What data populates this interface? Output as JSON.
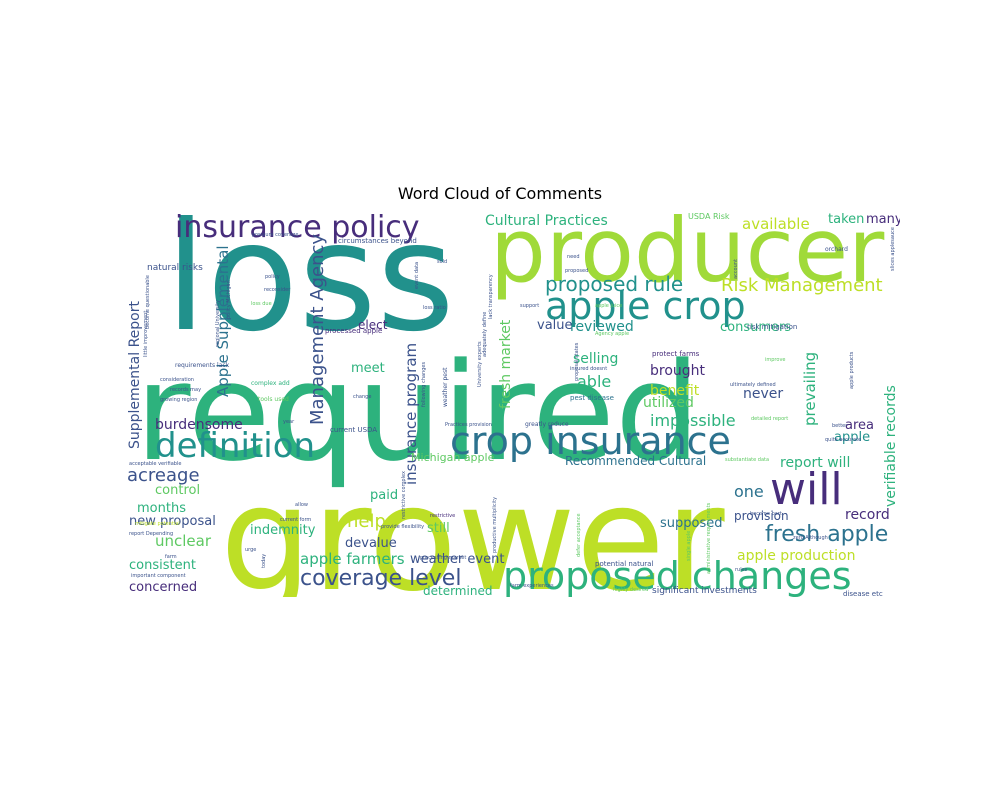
{
  "title": "Word Cloud of Comments",
  "palette": {
    "yellow_green": "#bddf26",
    "lime": "#a0da39",
    "green": "#2db27d",
    "teal": "#21918c",
    "light_green": "#5ec962",
    "blue_teal": "#2c728e",
    "steel": "#3b528b",
    "indigo": "#472d7b",
    "purple": "#440154",
    "yellow": "#e8e419"
  },
  "words": [
    {
      "text": "loss",
      "color": "#21918c",
      "size": 1.0
    },
    {
      "text": "required",
      "color": "#2db27d",
      "size": 0.98
    },
    {
      "text": "grower",
      "color": "#bddf26",
      "size": 0.96
    },
    {
      "text": "producer",
      "color": "#a0da39",
      "size": 0.62
    },
    {
      "text": "insurance policy",
      "color": "#472d7b",
      "size": 0.24
    },
    {
      "text": "apple crop",
      "color": "#21918c",
      "size": 0.26
    },
    {
      "text": "crop insurance",
      "color": "#2c728e",
      "size": 0.26
    },
    {
      "text": "definition",
      "color": "#21918c",
      "size": 0.24
    },
    {
      "text": "proposed changes",
      "color": "#2db27d",
      "size": 0.26
    },
    {
      "text": "will",
      "color": "#472d7b",
      "size": 0.3
    },
    {
      "text": "Cultural Practices",
      "color": "#2db27d",
      "size": 0.1
    },
    {
      "text": "proposed rule",
      "color": "#21918c",
      "size": 0.14
    },
    {
      "text": "Risk Management",
      "color": "#bddf26",
      "size": 0.12
    },
    {
      "text": "Supplemental Report",
      "color": "#3b528b",
      "size": 0.1
    },
    {
      "text": "Management Agency",
      "color": "#3b528b",
      "size": 0.12
    },
    {
      "text": "Apple Supplemental",
      "color": "#2c728e",
      "size": 0.11
    },
    {
      "text": "insurance program",
      "color": "#3b528b",
      "size": 0.1
    },
    {
      "text": "fresh market",
      "color": "#5ec962",
      "size": 0.1
    },
    {
      "text": "verifiable records",
      "color": "#2db27d",
      "size": 0.09
    },
    {
      "text": "fresh apple",
      "color": "#2c728e",
      "size": 0.14
    },
    {
      "text": "coverage level",
      "color": "#3b528b",
      "size": 0.14
    },
    {
      "text": "apple farmers",
      "color": "#2db27d",
      "size": 0.1
    },
    {
      "text": "acreage",
      "color": "#3b528b",
      "size": 0.12
    },
    {
      "text": "help",
      "color": "#bddf26",
      "size": 0.12
    },
    {
      "text": "apple production",
      "color": "#bddf26",
      "size": 0.1
    },
    {
      "text": "prevailing",
      "color": "#2db27d",
      "size": 0.1
    },
    {
      "text": "available",
      "color": "#bddf26",
      "size": 0.1
    },
    {
      "text": "consumers",
      "color": "#2db27d",
      "size": 0.08
    },
    {
      "text": "reviewed",
      "color": "#21918c",
      "size": 0.09
    },
    {
      "text": "selling",
      "color": "#2db27d",
      "size": 0.09
    },
    {
      "text": "value",
      "color": "#3b528b",
      "size": 0.09
    },
    {
      "text": "able",
      "color": "#2db27d",
      "size": 0.11
    },
    {
      "text": "benefit",
      "color": "#bddf26",
      "size": 0.09
    },
    {
      "text": "brought",
      "color": "#472d7b",
      "size": 0.09
    },
    {
      "text": "utilized",
      "color": "#5ec962",
      "size": 0.09
    },
    {
      "text": "never",
      "color": "#3b528b",
      "size": 0.09
    },
    {
      "text": "impossible",
      "color": "#2db27d",
      "size": 0.1
    },
    {
      "text": "burdensome",
      "color": "#472d7b",
      "size": 0.09
    },
    {
      "text": "meet",
      "color": "#2db27d",
      "size": 0.09
    },
    {
      "text": "elect",
      "color": "#472d7b",
      "size": 0.08
    },
    {
      "text": "Recommended Cultural",
      "color": "#2c728e",
      "size": 0.08
    },
    {
      "text": "Michigan apple",
      "color": "#5ec962",
      "size": 0.07
    },
    {
      "text": "report will",
      "color": "#2db27d",
      "size": 0.08
    },
    {
      "text": "apple",
      "color": "#21918c",
      "size": 0.08
    },
    {
      "text": "area",
      "color": "#472d7b",
      "size": 0.08
    },
    {
      "text": "one",
      "color": "#2c728e",
      "size": 0.1
    },
    {
      "text": "provision",
      "color": "#3b528b",
      "size": 0.08
    },
    {
      "text": "record",
      "color": "#472d7b",
      "size": 0.09
    },
    {
      "text": "control",
      "color": "#5ec962",
      "size": 0.08
    },
    {
      "text": "months",
      "color": "#2db27d",
      "size": 0.08
    },
    {
      "text": "new proposal",
      "color": "#3b528b",
      "size": 0.08
    },
    {
      "text": "unclear",
      "color": "#5ec962",
      "size": 0.09
    },
    {
      "text": "indemnity",
      "color": "#2db27d",
      "size": 0.08
    },
    {
      "text": "consistent",
      "color": "#2db27d",
      "size": 0.08
    },
    {
      "text": "concerned",
      "color": "#472d7b",
      "size": 0.08
    },
    {
      "text": "paid",
      "color": "#2db27d",
      "size": 0.09
    },
    {
      "text": "still",
      "color": "#5ec962",
      "size": 0.09
    },
    {
      "text": "devalue",
      "color": "#3b528b",
      "size": 0.08
    },
    {
      "text": "supposed",
      "color": "#2c728e",
      "size": 0.08
    },
    {
      "text": "weather event",
      "color": "#3b528b",
      "size": 0.08
    },
    {
      "text": "determined",
      "color": "#2db27d",
      "size": 0.08
    },
    {
      "text": "many steps",
      "color": "#bddf26",
      "size": 0.05
    },
    {
      "text": "significant investments",
      "color": "#3b528b",
      "size": 0.05
    },
    {
      "text": "natural risks",
      "color": "#3b528b",
      "size": 0.05
    },
    {
      "text": "processed apple",
      "color": "#472d7b",
      "size": 0.04
    },
    {
      "text": "current USDA",
      "color": "#3b528b",
      "size": 0.05
    },
    {
      "text": "risk mitigation",
      "color": "#3b528b",
      "size": 0.04
    },
    {
      "text": "protect farms",
      "color": "#472d7b",
      "size": 0.04
    },
    {
      "text": "pest disease",
      "color": "#2c728e",
      "size": 0.04
    },
    {
      "text": "USDA Risk",
      "color": "#5ec962",
      "size": 0.05
    },
    {
      "text": "taken",
      "color": "#2db27d",
      "size": 0.07
    },
    {
      "text": "many",
      "color": "#472d7b",
      "size": 0.07
    },
    {
      "text": "orchard",
      "color": "#3b528b",
      "size": 0.04
    },
    {
      "text": "greatly reduce",
      "color": "#3b528b",
      "size": 0.04
    },
    {
      "text": "weather pest",
      "color": "#3b528b",
      "size": 0.04
    },
    {
      "text": "tools used",
      "color": "#5ec962",
      "size": 0.04
    },
    {
      "text": "complex add",
      "color": "#2db27d",
      "size": 0.04
    },
    {
      "text": "potential natural",
      "color": "#3b528b",
      "size": 0.04
    },
    {
      "text": "disease etc",
      "color": "#3b528b",
      "size": 0.04
    },
    {
      "text": "restrictive",
      "color": "#472d7b",
      "size": 0.03
    },
    {
      "text": "requirements lack",
      "color": "#3b528b",
      "size": 0.04
    },
    {
      "text": "little improvement",
      "color": "#3b528b",
      "size": 0.03
    },
    {
      "text": "become questionable",
      "color": "#3b528b",
      "size": 0.03
    },
    {
      "text": "circumstances beyond",
      "color": "#3b528b",
      "size": 0.04
    },
    {
      "text": "loss ratio",
      "color": "#3b528b",
      "size": 0.03
    },
    {
      "text": "support",
      "color": "#3b528b",
      "size": 0.03
    },
    {
      "text": "apple juice",
      "color": "#5ec962",
      "size": 0.03
    },
    {
      "text": "Agency apple",
      "color": "#5ec962",
      "size": 0.03
    },
    {
      "text": "insured doesnt",
      "color": "#3b528b",
      "size": 0.03
    },
    {
      "text": "ultimately defined",
      "color": "#3b528b",
      "size": 0.03
    },
    {
      "text": "detailed report",
      "color": "#5ec962",
      "size": 0.03
    },
    {
      "text": "better",
      "color": "#3b528b",
      "size": 0.03
    },
    {
      "text": "quite accurate",
      "color": "#3b528b",
      "size": 0.03
    },
    {
      "text": "report Depending",
      "color": "#3b528b",
      "size": 0.03
    },
    {
      "text": "mitigate potential",
      "color": "#bddf26",
      "size": 0.03
    },
    {
      "text": "important component",
      "color": "#3b528b",
      "size": 0.03
    },
    {
      "text": "current form",
      "color": "#3b528b",
      "size": 0.03
    },
    {
      "text": "processing market",
      "color": "#3b528b",
      "size": 0.03
    },
    {
      "text": "farm experiences",
      "color": "#3b528b",
      "size": 0.03
    },
    {
      "text": "highly desired",
      "color": "#5ec962",
      "size": 0.03
    },
    {
      "text": "zero Although",
      "color": "#3b528b",
      "size": 0.03
    },
    {
      "text": "pressure coverage",
      "color": "#3b528b",
      "size": 0.03
    },
    {
      "text": "consideration",
      "color": "#3b528b",
      "size": 0.03
    },
    {
      "text": "records may",
      "color": "#3b528b",
      "size": 0.03
    },
    {
      "text": "growing region",
      "color": "#3b528b",
      "size": 0.03
    },
    {
      "text": "policy",
      "color": "#3b528b",
      "size": 0.03
    },
    {
      "text": "reconsider",
      "color": "#3b528b",
      "size": 0.03
    },
    {
      "text": "loss due",
      "color": "#5ec962",
      "size": 0.03
    },
    {
      "text": "change",
      "color": "#3b528b",
      "size": 0.03
    },
    {
      "text": "year",
      "color": "#3b528b",
      "size": 0.03
    },
    {
      "text": "allow",
      "color": "#3b528b",
      "size": 0.03
    },
    {
      "text": "urge",
      "color": "#3b528b",
      "size": 0.03
    },
    {
      "text": "today",
      "color": "#3b528b",
      "size": 0.03
    },
    {
      "text": "sold",
      "color": "#3b528b",
      "size": 0.03
    },
    {
      "text": "need",
      "color": "#3b528b",
      "size": 0.03
    },
    {
      "text": "proposed",
      "color": "#3b528b",
      "size": 0.03
    },
    {
      "text": "account",
      "color": "#3b528b",
      "size": 0.03
    },
    {
      "text": "acceptable verifiable",
      "color": "#3b528b",
      "size": 0.03
    },
    {
      "text": "substantiate data",
      "color": "#5ec962",
      "size": 0.03
    },
    {
      "text": "provide flexibility",
      "color": "#3b528b",
      "size": 0.03
    },
    {
      "text": "single apple",
      "color": "#5ec962",
      "size": 0.03
    },
    {
      "text": "become part",
      "color": "#3b528b",
      "size": 0.03
    },
    {
      "text": "apple products",
      "color": "#3b528b",
      "size": 0.03
    },
    {
      "text": "lack transparency",
      "color": "#3b528b",
      "size": 0.03
    },
    {
      "text": "administrative requirements",
      "color": "#5ec962",
      "size": 0.03
    },
    {
      "text": "following changes",
      "color": "#3b528b",
      "size": 0.03
    },
    {
      "text": "University experts",
      "color": "#3b528b",
      "size": 0.03
    },
    {
      "text": "adequately define",
      "color": "#3b528b",
      "size": 0.03
    },
    {
      "text": "proposal states",
      "color": "#3b528b",
      "size": 0.03
    },
    {
      "text": "restrictive complex",
      "color": "#3b528b",
      "size": 0.03
    },
    {
      "text": "event data",
      "color": "#3b528b",
      "size": 0.03
    },
    {
      "text": "regional University",
      "color": "#3b528b",
      "size": 0.03
    },
    {
      "text": "policy Michigan",
      "color": "#3b528b",
      "size": 0.03
    },
    {
      "text": "slices applesauce",
      "color": "#3b528b",
      "size": 0.03
    },
    {
      "text": "defer acceptance",
      "color": "#5ec962",
      "size": 0.03
    },
    {
      "text": "productive multiplicity",
      "color": "#3b528b",
      "size": 0.03
    },
    {
      "text": "rules",
      "color": "#3b528b",
      "size": 0.03
    },
    {
      "text": "farm",
      "color": "#3b528b",
      "size": 0.03
    },
    {
      "text": "Practices provision",
      "color": "#3b528b",
      "size": 0.03
    },
    {
      "text": "improve",
      "color": "#5ec962",
      "size": 0.03
    }
  ]
}
